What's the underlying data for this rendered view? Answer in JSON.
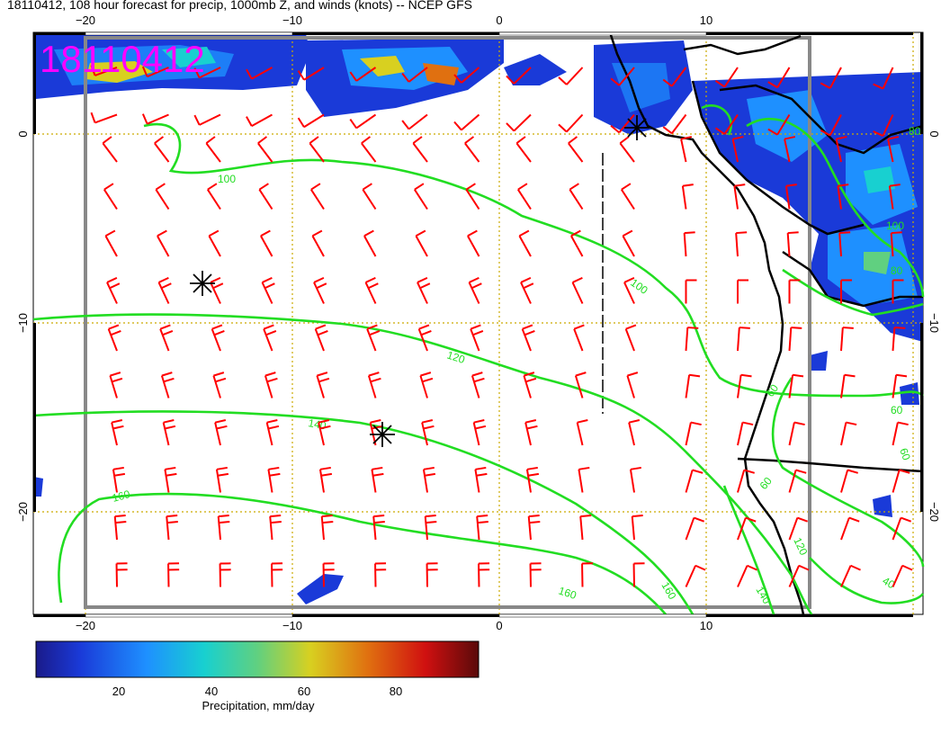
{
  "title": "18110412, 108 hour forecast for precip, 1000mb Z, and winds (knots) -- NCEP GFS",
  "run_label": "18110412",
  "x_axis": {
    "ticks_top": [
      "−20",
      "−10",
      "0",
      "10"
    ],
    "ticks_bottom": [
      "−20",
      "−10",
      "0",
      "10"
    ]
  },
  "y_axis": {
    "ticks_left": [
      "0",
      "−10",
      "−20"
    ],
    "ticks_right": [
      "0",
      "−10",
      "−20"
    ]
  },
  "contour_labels": [
    "100",
    "100",
    "120",
    "140",
    "160",
    "160",
    "160",
    "140",
    "120",
    "100",
    "80",
    "60",
    "60",
    "60",
    "40",
    "60",
    "80"
  ],
  "colorbar": {
    "title": "Precipitation, mm/day",
    "ticks": [
      "20",
      "40",
      "60",
      "80"
    ],
    "range": [
      0,
      100
    ]
  },
  "colors": {
    "contour": "#22dd22",
    "wind_barb": "#ff0000",
    "coast": "#000000",
    "run_label": "#ff00ff",
    "grid": "#ccaa00"
  },
  "legend_icons": [
    "cyclone-marker-icon"
  ]
}
